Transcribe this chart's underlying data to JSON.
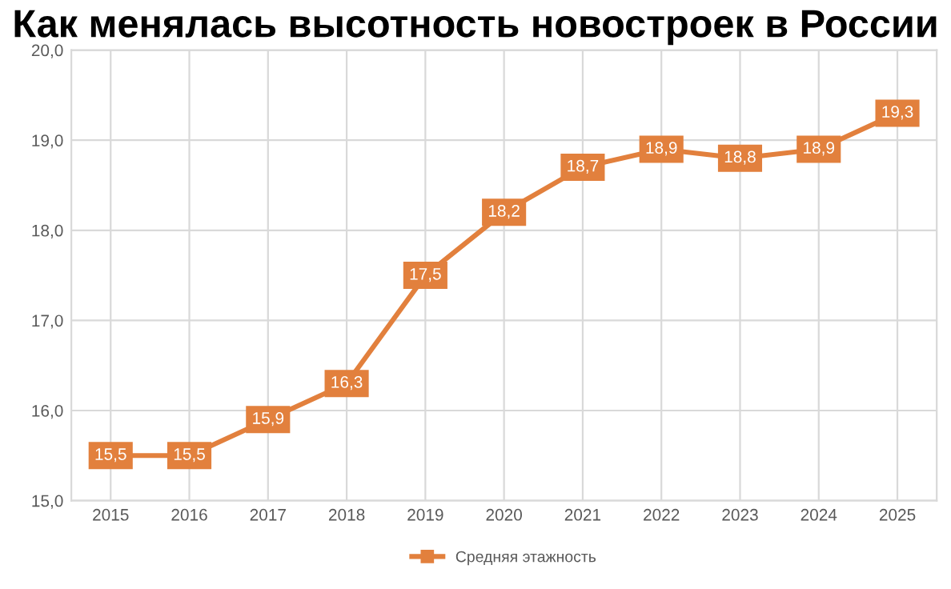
{
  "chart_data": {
    "type": "line",
    "title": "Как менялась высотность новостроек в России",
    "categories": [
      "2015",
      "2016",
      "2017",
      "2018",
      "2019",
      "2020",
      "2021",
      "2022",
      "2023",
      "2024",
      "2025"
    ],
    "series": [
      {
        "name": "Средняя этажность",
        "color": "#e2803d",
        "values": [
          15.5,
          15.5,
          15.9,
          16.3,
          17.5,
          18.2,
          18.7,
          18.9,
          18.8,
          18.9,
          19.3
        ],
        "value_labels": [
          "15,5",
          "15,5",
          "15,9",
          "16,3",
          "17,5",
          "18,2",
          "18,7",
          "18,9",
          "18,8",
          "18,9",
          "19,3"
        ]
      }
    ],
    "ylim": [
      15,
      20
    ],
    "yticks": [
      {
        "value": 15,
        "label": "15,0"
      },
      {
        "value": 16,
        "label": "16,0"
      },
      {
        "value": 17,
        "label": "17,0"
      },
      {
        "value": 18,
        "label": "18,0"
      },
      {
        "value": 19,
        "label": "19,0"
      },
      {
        "value": 20,
        "label": "20,0"
      }
    ],
    "grid": true,
    "legend": "bottom",
    "marker": "square",
    "line_style": "solid"
  }
}
